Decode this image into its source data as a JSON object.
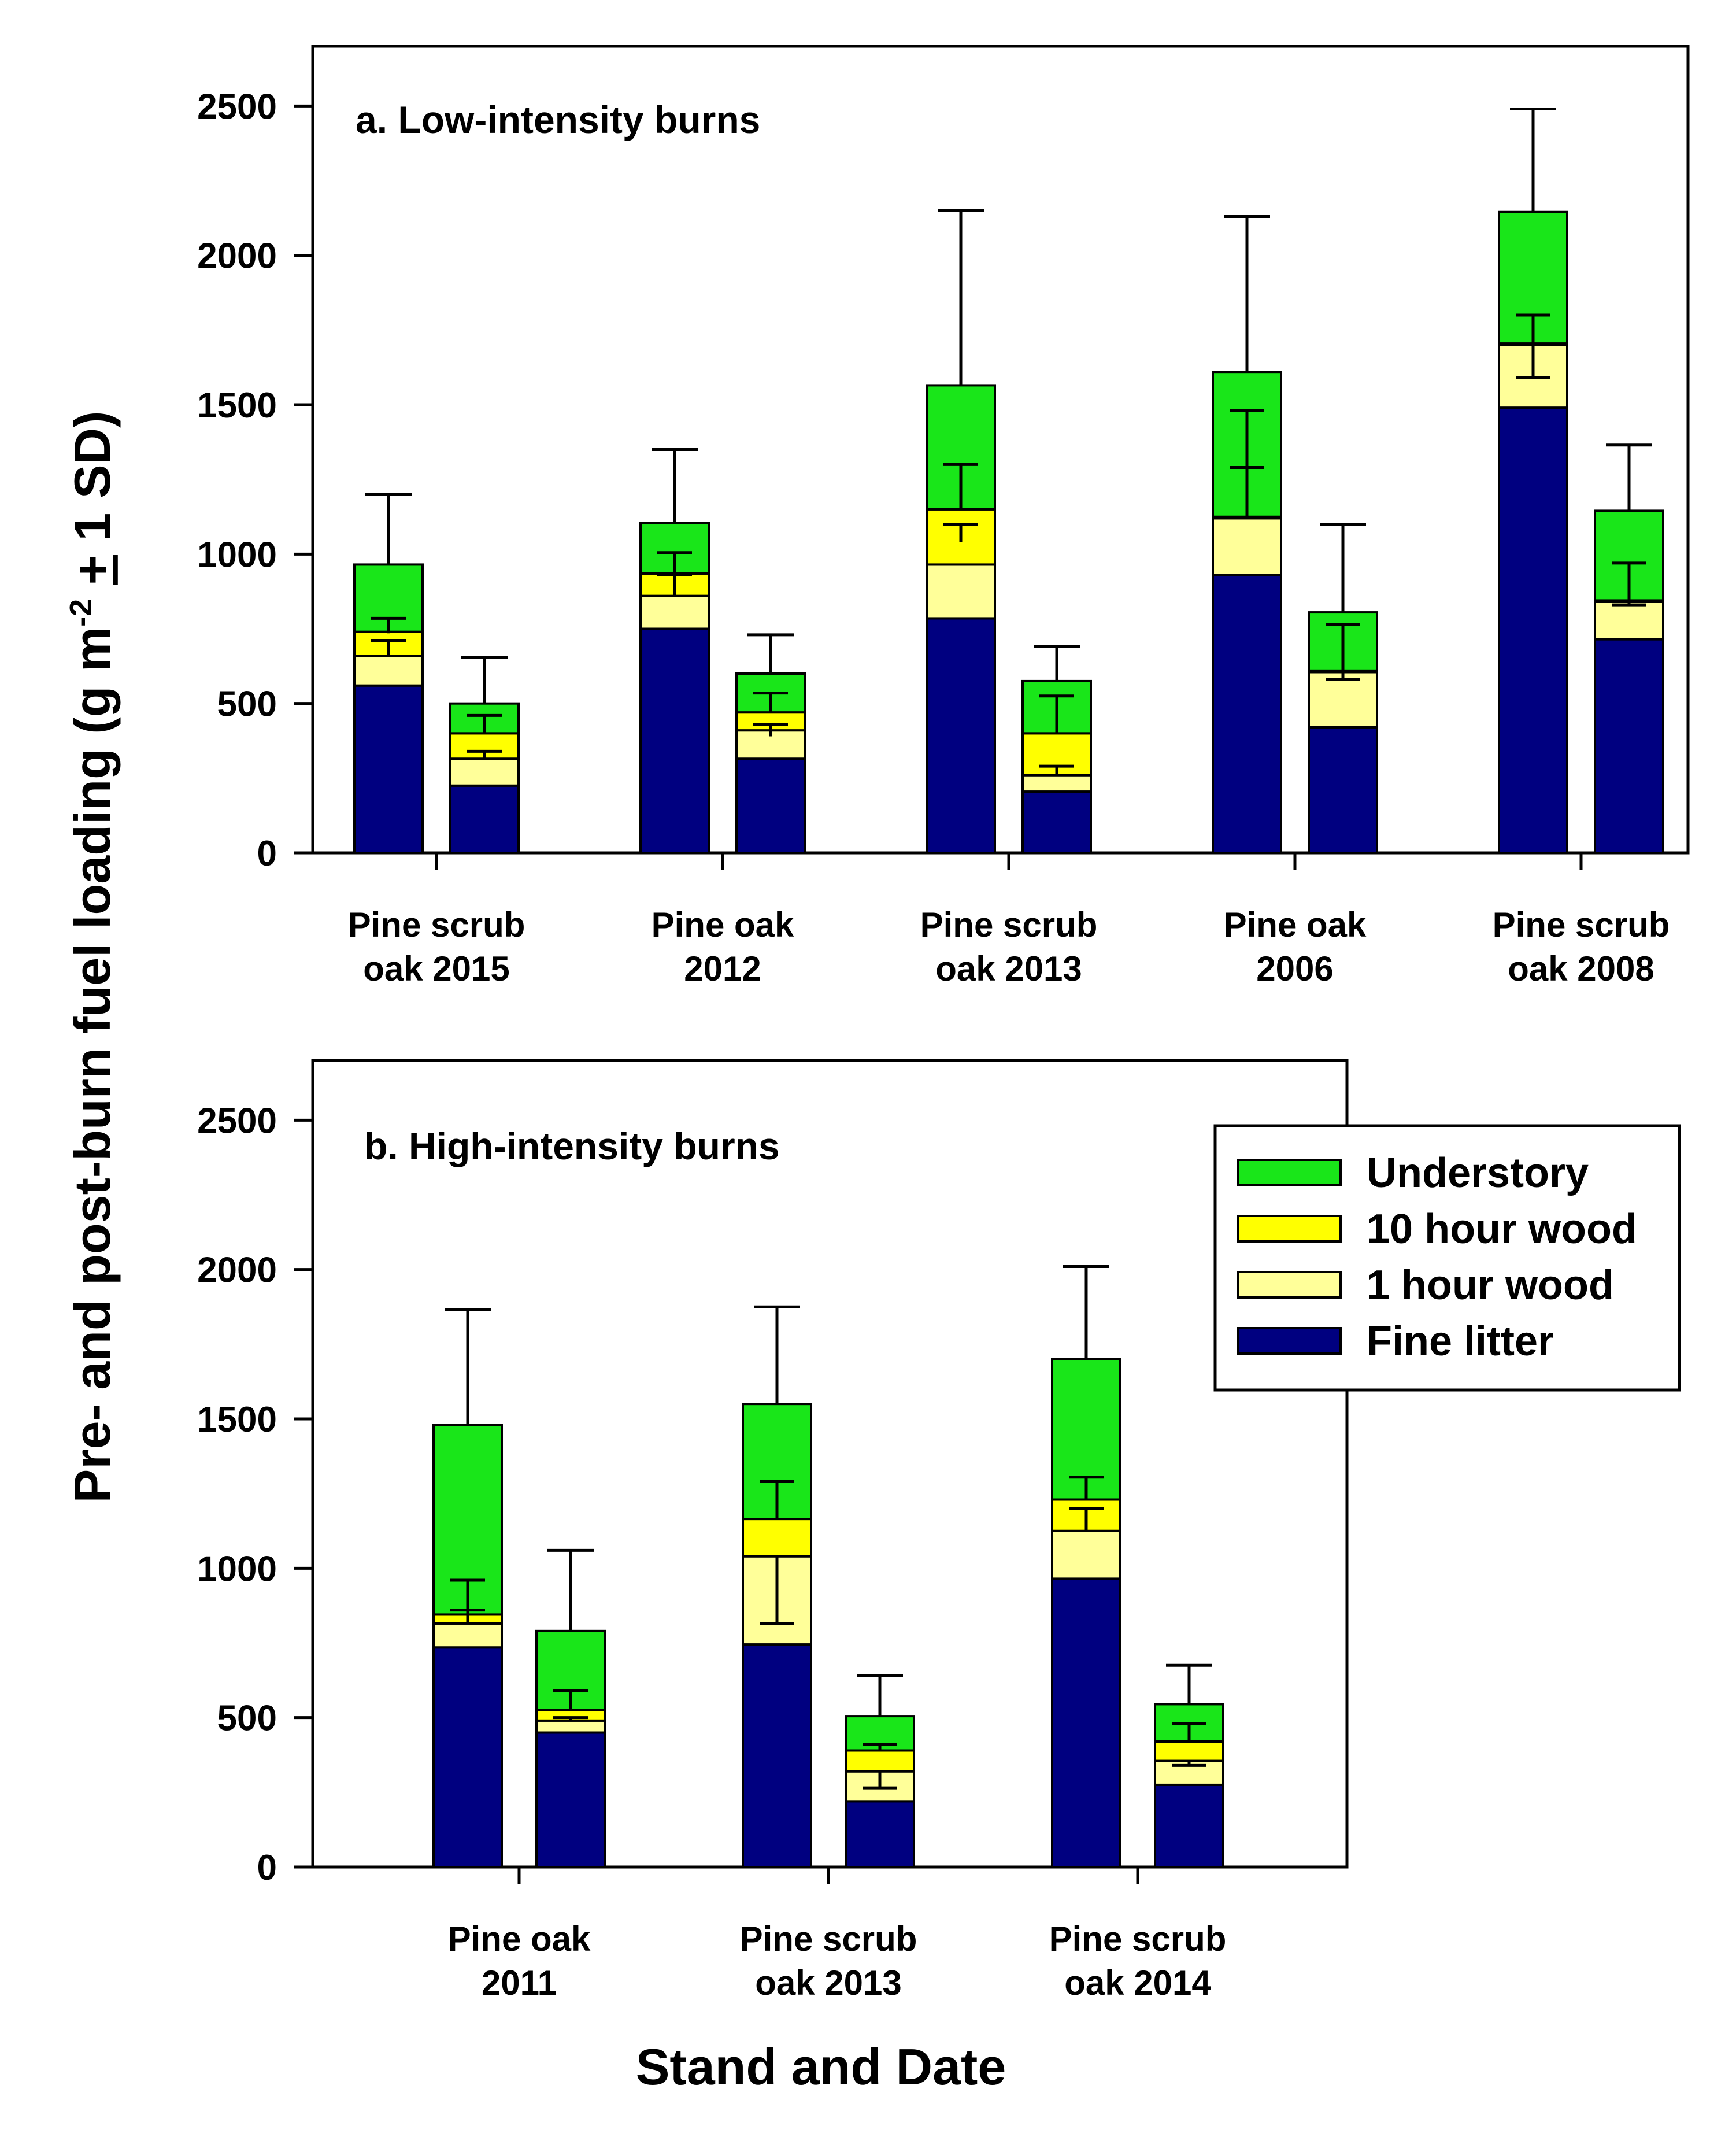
{
  "colors": {
    "understory": "#19E619",
    "ten_hour_wood": "#FFFF00",
    "one_hour_wood": "#FFFF99",
    "fine_litter": "#000080",
    "axis": "#000000",
    "error_bar": "#000000"
  },
  "figure": {
    "ylabel_main": "Pre- and post-burn fuel loading (g m",
    "ylabel_sup": "-2",
    "ylabel_pm": "+",
    "ylabel_tail": " 1 SD)",
    "xlabel": "Stand and Date"
  },
  "chart_data": [
    {
      "id": "a",
      "type": "bar",
      "stacked": true,
      "title": "a. Low-intensity burns",
      "xlabel": "Stand and Date",
      "ylabel": "Pre- and post-burn fuel loading (g m-2 ± 1 SD)",
      "ylim": [
        0,
        2700
      ],
      "yticks": [
        0,
        500,
        1000,
        1500,
        2000,
        2500
      ],
      "ytick_labels": [
        "0",
        "500",
        "1000",
        "1500",
        "2000",
        "2500"
      ],
      "grid": false,
      "categories": [
        {
          "label_lines": [
            "Pine scrub",
            "oak 2015"
          ]
        },
        {
          "label_lines": [
            "Pine oak",
            "2012"
          ]
        },
        {
          "label_lines": [
            "Pine scrub",
            "oak 2013"
          ]
        },
        {
          "label_lines": [
            "Pine oak",
            "2006"
          ]
        },
        {
          "label_lines": [
            "Pine scrub",
            "oak 2008"
          ]
        }
      ],
      "bars": [
        {
          "category": 0,
          "phase": "pre",
          "fine_litter": 560,
          "one_hour_wood": 100,
          "ten_hour_wood": 80,
          "understory": 225,
          "err_top": 1200,
          "err_inner": [
            [
              655,
              710
            ],
            [
              735,
              785
            ]
          ]
        },
        {
          "category": 0,
          "phase": "post",
          "fine_litter": 225,
          "one_hour_wood": 90,
          "ten_hour_wood": 85,
          "understory": 100,
          "err_top": 655,
          "err_inner": [
            [
              310,
              340
            ],
            [
              400,
              460
            ]
          ]
        },
        {
          "category": 1,
          "phase": "pre",
          "fine_litter": 750,
          "one_hour_wood": 110,
          "ten_hour_wood": 75,
          "understory": 170,
          "err_top": 1350,
          "err_inner": [
            [
              860,
              930
            ],
            [
              935,
              1005
            ]
          ]
        },
        {
          "category": 1,
          "phase": "post",
          "fine_litter": 315,
          "one_hour_wood": 95,
          "ten_hour_wood": 60,
          "understory": 130,
          "err_top": 730,
          "err_inner": [
            [
              390,
              430
            ],
            [
              470,
              535
            ]
          ]
        },
        {
          "category": 2,
          "phase": "pre",
          "fine_litter": 785,
          "one_hour_wood": 180,
          "ten_hour_wood": 185,
          "understory": 415,
          "err_top": 2150,
          "err_inner": [
            [
              1040,
              1100
            ],
            [
              1150,
              1300
            ]
          ]
        },
        {
          "category": 2,
          "phase": "post",
          "fine_litter": 205,
          "one_hour_wood": 55,
          "ten_hour_wood": 140,
          "understory": 175,
          "err_top": 690,
          "err_inner": [
            [
              265,
              290
            ],
            [
              400,
              525
            ]
          ]
        },
        {
          "category": 3,
          "phase": "pre",
          "fine_litter": 930,
          "one_hour_wood": 190,
          "ten_hour_wood": 5,
          "understory": 485,
          "err_top": 2130,
          "err_inner": [
            [
              1120,
              1290
            ],
            [
              1125,
              1480
            ]
          ]
        },
        {
          "category": 3,
          "phase": "post",
          "fine_litter": 420,
          "one_hour_wood": 185,
          "ten_hour_wood": 5,
          "understory": 195,
          "err_top": 1100,
          "err_inner": [
            [
              605,
              580
            ],
            [
              610,
              765
            ]
          ]
        },
        {
          "category": 4,
          "phase": "pre",
          "fine_litter": 1490,
          "one_hour_wood": 210,
          "ten_hour_wood": 5,
          "understory": 440,
          "err_top": 2490,
          "err_inner": [
            [
              1700,
              1590
            ],
            [
              1705,
              1800
            ]
          ]
        },
        {
          "category": 4,
          "phase": "post",
          "fine_litter": 715,
          "one_hour_wood": 125,
          "ten_hour_wood": 5,
          "understory": 300,
          "err_top": 1365,
          "err_inner": [
            [
              840,
              830
            ],
            [
              845,
              970
            ]
          ]
        }
      ]
    },
    {
      "id": "b",
      "type": "bar",
      "stacked": true,
      "title": "b. High-intensity burns",
      "xlabel": "Stand and Date",
      "ylabel": "Pre- and post-burn fuel loading (g m-2 ± 1 SD)",
      "ylim": [
        0,
        2700
      ],
      "yticks": [
        0,
        500,
        1000,
        1500,
        2000,
        2500
      ],
      "ytick_labels": [
        "0",
        "500",
        "1000",
        "1500",
        "2000",
        "2500"
      ],
      "grid": false,
      "legend": {
        "position": "top-right",
        "entries": [
          {
            "key": "understory",
            "label": "Understory"
          },
          {
            "key": "ten_hour_wood",
            "label": "10 hour wood"
          },
          {
            "key": "one_hour_wood",
            "label": "1 hour wood"
          },
          {
            "key": "fine_litter",
            "label": "Fine litter"
          }
        ]
      },
      "categories": [
        {
          "label_lines": [
            "Pine oak",
            "2011"
          ]
        },
        {
          "label_lines": [
            "Pine scrub",
            "oak 2013"
          ]
        },
        {
          "label_lines": [
            "Pine scrub",
            "oak 2014"
          ]
        }
      ],
      "bars": [
        {
          "category": 0,
          "phase": "pre",
          "fine_litter": 735,
          "one_hour_wood": 80,
          "ten_hour_wood": 30,
          "understory": 635,
          "err_top": 1865,
          "err_inner": [
            [
              815,
              860
            ],
            [
              845,
              960
            ]
          ]
        },
        {
          "category": 0,
          "phase": "post",
          "fine_litter": 450,
          "one_hour_wood": 40,
          "ten_hour_wood": 35,
          "understory": 265,
          "err_top": 1060,
          "err_inner": [
            [
              490,
              500
            ],
            [
              525,
              590
            ]
          ]
        },
        {
          "category": 1,
          "phase": "pre",
          "fine_litter": 745,
          "one_hour_wood": 295,
          "ten_hour_wood": 125,
          "understory": 385,
          "err_top": 1875,
          "err_inner": [
            [
              1040,
              815
            ],
            [
              1165,
              1290
            ]
          ]
        },
        {
          "category": 1,
          "phase": "post",
          "fine_litter": 220,
          "one_hour_wood": 100,
          "ten_hour_wood": 70,
          "understory": 115,
          "err_top": 640,
          "err_inner": [
            [
              320,
              265
            ],
            [
              390,
              410
            ]
          ]
        },
        {
          "category": 2,
          "phase": "pre",
          "fine_litter": 965,
          "one_hour_wood": 160,
          "ten_hour_wood": 105,
          "understory": 470,
          "err_top": 2010,
          "err_inner": [
            [
              1125,
              1200
            ],
            [
              1230,
              1305
            ]
          ]
        },
        {
          "category": 2,
          "phase": "post",
          "fine_litter": 275,
          "one_hour_wood": 80,
          "ten_hour_wood": 65,
          "understory": 125,
          "err_top": 675,
          "err_inner": [
            [
              355,
              340
            ],
            [
              420,
              480
            ]
          ]
        }
      ]
    }
  ]
}
